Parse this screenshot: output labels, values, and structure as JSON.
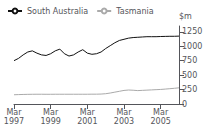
{
  "chart_data": {
    "type": "line",
    "ylabel": "$m",
    "categories": [
      "Mar\n1997",
      null,
      null,
      null,
      null,
      null,
      null,
      null,
      "Mar\n1999",
      null,
      null,
      null,
      null,
      null,
      null,
      null,
      "Mar\n2001",
      null,
      null,
      null,
      null,
      null,
      null,
      null,
      "Mar\n2003",
      null,
      null,
      null,
      null,
      null,
      null,
      null,
      "Mar\n2005",
      null,
      null,
      null,
      null
    ],
    "series": [
      {
        "name": "South Australia",
        "color": "#111111",
        "values": [
          750,
          790,
          850,
          900,
          920,
          880,
          850,
          840,
          870,
          920,
          950,
          870,
          830,
          850,
          900,
          940,
          880,
          860,
          870,
          900,
          960,
          1010,
          1060,
          1100,
          1120,
          1140,
          1150,
          1155,
          1160,
          1165,
          1165,
          1165,
          1168,
          1170,
          1172,
          1172,
          1175
        ]
      },
      {
        "name": "Tasmania",
        "color": "#aaaaaa",
        "values": [
          160,
          163,
          165,
          167,
          168,
          169,
          169,
          168,
          168,
          169,
          169,
          169,
          169,
          169,
          169,
          169,
          169,
          170,
          170,
          172,
          178,
          190,
          205,
          220,
          235,
          242,
          238,
          232,
          236,
          240,
          244,
          248,
          252,
          258,
          265,
          272,
          280
        ]
      }
    ],
    "ylim": [
      0,
      1350
    ],
    "yticks": [
      0,
      250,
      500,
      750,
      1000,
      1250
    ],
    "legend": "upper left",
    "grid": false
  }
}
